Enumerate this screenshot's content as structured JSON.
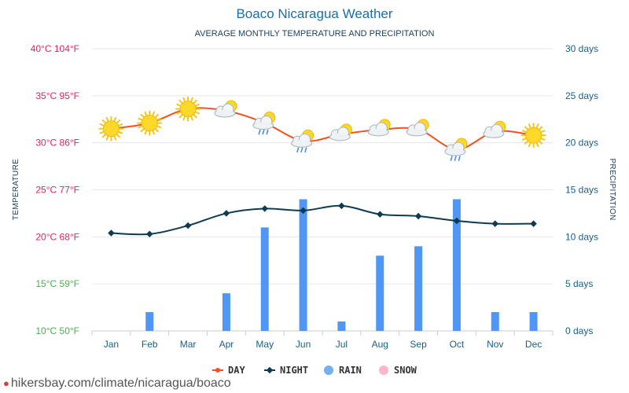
{
  "chart_data": {
    "type": "bar+line",
    "title": "Boaco Nicaragua Weather",
    "subtitle": "AVERAGE MONTHLY TEMPERATURE AND PRECIPITATION",
    "categories": [
      "Jan",
      "Feb",
      "Mar",
      "Apr",
      "May",
      "Jun",
      "Jul",
      "Aug",
      "Sep",
      "Oct",
      "Nov",
      "Dec"
    ],
    "left_axis": {
      "label": "TEMPERATURE",
      "range": [
        10,
        40
      ],
      "ticks": [
        {
          "value": 40,
          "label": "40°C 104°F",
          "color": "#e0245e"
        },
        {
          "value": 35,
          "label": "35°C 95°F",
          "color": "#e0245e"
        },
        {
          "value": 30,
          "label": "30°C 86°F",
          "color": "#e0245e"
        },
        {
          "value": 25,
          "label": "25°C 77°F",
          "color": "#e0245e"
        },
        {
          "value": 20,
          "label": "20°C 68°F",
          "color": "#e0245e"
        },
        {
          "value": 15,
          "label": "15°C 59°F",
          "color": "#4caf50"
        },
        {
          "value": 10,
          "label": "10°C 50°F",
          "color": "#4caf50"
        }
      ]
    },
    "right_axis": {
      "label": "PRECIPITATION",
      "range": [
        0,
        30
      ],
      "ticks": [
        {
          "value": 30,
          "label": "30 days"
        },
        {
          "value": 25,
          "label": "25 days"
        },
        {
          "value": 20,
          "label": "20 days"
        },
        {
          "value": 15,
          "label": "15 days"
        },
        {
          "value": 10,
          "label": "10 days"
        },
        {
          "value": 5,
          "label": "5 days"
        },
        {
          "value": 0,
          "label": "0 days"
        }
      ]
    },
    "series": [
      {
        "name": "DAY",
        "type": "line",
        "axis": "left",
        "color": "#f4511e",
        "values": [
          31.5,
          32.1,
          33.6,
          33.4,
          32.1,
          30.2,
          30.9,
          31.4,
          31.4,
          29.3,
          31.2,
          30.8
        ],
        "icons": [
          "sun",
          "sun",
          "sun",
          "partly",
          "rain",
          "rain",
          "partly",
          "partly",
          "partly",
          "rain",
          "partly",
          "sun"
        ]
      },
      {
        "name": "NIGHT",
        "type": "line",
        "axis": "left",
        "color": "#0d3b4f",
        "values": [
          20.4,
          20.3,
          21.2,
          22.5,
          23.0,
          22.8,
          23.3,
          22.4,
          22.2,
          21.7,
          21.4,
          21.4
        ]
      },
      {
        "name": "RAIN",
        "type": "bar",
        "axis": "right",
        "color": "#5096f5",
        "values": [
          0,
          2,
          0,
          4,
          11,
          14,
          1,
          8,
          9,
          14,
          2,
          2
        ]
      },
      {
        "name": "SNOW",
        "type": "bar",
        "axis": "right",
        "color": "#ffb6c8",
        "values": [
          0,
          0,
          0,
          0,
          0,
          0,
          0,
          0,
          0,
          0,
          0,
          0
        ]
      }
    ],
    "legend": [
      {
        "name": "DAY",
        "color": "#f4511e",
        "kind": "line"
      },
      {
        "name": "NIGHT",
        "color": "#0d3b4f",
        "kind": "line"
      },
      {
        "name": "RAIN",
        "color": "#74b0ef",
        "kind": "dot"
      },
      {
        "name": "SNOW",
        "color": "#ffb6c8",
        "kind": "dot"
      }
    ],
    "legend_position": "bottom-center",
    "grid": true
  },
  "footer": {
    "text": "hikersbay.com/climate/nicaragua/boaco"
  },
  "colors": {
    "title": "#1a6fa8",
    "subtitle": "#1a3e5c",
    "right_axis": "#1a5f86",
    "month_labels": "#1a5f86",
    "axis_title": "#1a3e5c",
    "grid": "#e6e6e6"
  }
}
